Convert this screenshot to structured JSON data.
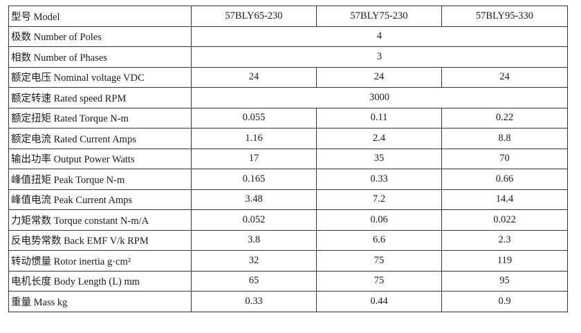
{
  "header": {
    "label": "型号 Model",
    "models": [
      "57BLY65-230",
      "57BLY75-230",
      "57BLY95-330"
    ]
  },
  "rows": [
    {
      "label": "极数 Number of   Poles",
      "merged": "4"
    },
    {
      "label": "相数 Number of   Phases",
      "merged": "3"
    },
    {
      "label": "额定电压 Nominal voltage VDC",
      "values": [
        "24",
        "24",
        "24"
      ]
    },
    {
      "label": "额定转速 Rated speed     RPM",
      "merged": "3000"
    },
    {
      "label": "额定扭矩 Rated Torque    N-m",
      "values": [
        "0.055",
        "0.11",
        "0.22"
      ]
    },
    {
      "label": "额定电流 Rated Current   Amps",
      "values": [
        "1.16",
        "2.4",
        "8.8"
      ]
    },
    {
      "label": "输出功率 Output Power    Watts",
      "values": [
        "17",
        "35",
        "70"
      ]
    },
    {
      "label": "峰值扭矩 Peak Torque    N-m",
      "values": [
        "0.165",
        "0.33",
        "0.66"
      ]
    },
    {
      "label": "峰值电流 Peak Current    Amps",
      "values": [
        "3.48",
        "7.2",
        "14.4"
      ]
    },
    {
      "label": "力矩常数 Torque constant   N-m/A",
      "values": [
        "0.052",
        "0.06",
        "0.022"
      ]
    },
    {
      "label": "反电势常数 Back EMF   V/k RPM",
      "values": [
        "3.8",
        "6.6",
        "2.3"
      ]
    },
    {
      "label": "转动惯量 Rotor inertia    g·cm²",
      "values": [
        "32",
        "75",
        "119"
      ]
    },
    {
      "label": "电机长度 Body Length (L)     mm",
      "values": [
        "65",
        "75",
        "95"
      ]
    },
    {
      "label": "重量     Mass        kg",
      "values": [
        "0.33",
        "0.44",
        "0.9"
      ]
    }
  ]
}
